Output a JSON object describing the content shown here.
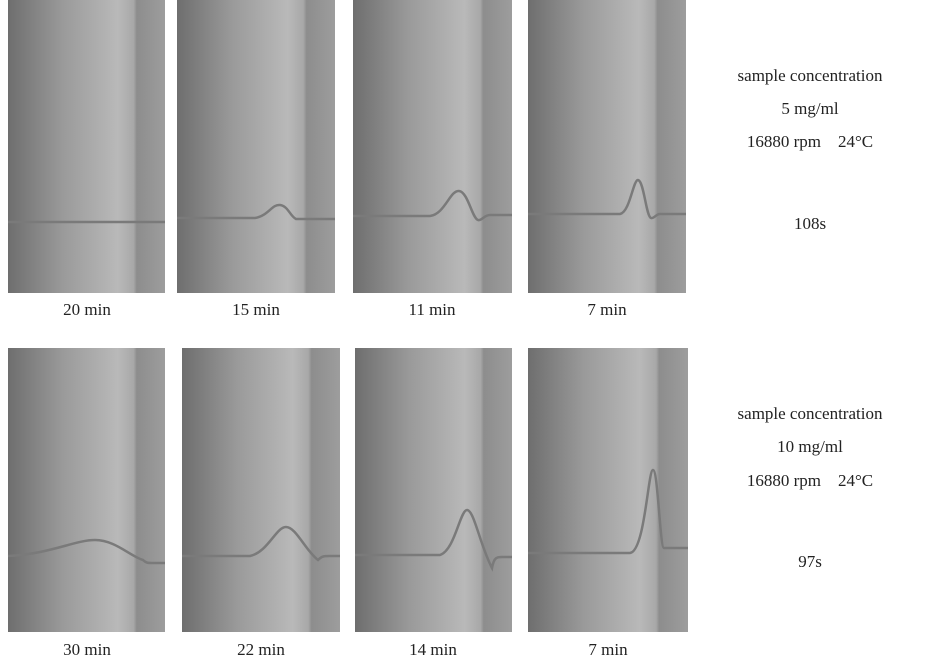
{
  "rows": [
    {
      "panels": [
        {
          "label": "20 min"
        },
        {
          "label": "15 min"
        },
        {
          "label": "11 min"
        },
        {
          "label": "7 min"
        }
      ],
      "info": [
        "sample concentration",
        "5 mg/ml",
        "16880 rpm    24°C",
        "108s"
      ]
    },
    {
      "panels": [
        {
          "label": "30 min"
        },
        {
          "label": "22 min"
        },
        {
          "label": "14 min"
        },
        {
          "label": "7 min"
        }
      ],
      "info": [
        "sample concentration",
        "10 mg/ml",
        "16880 rpm    24°C",
        "97s"
      ]
    }
  ]
}
